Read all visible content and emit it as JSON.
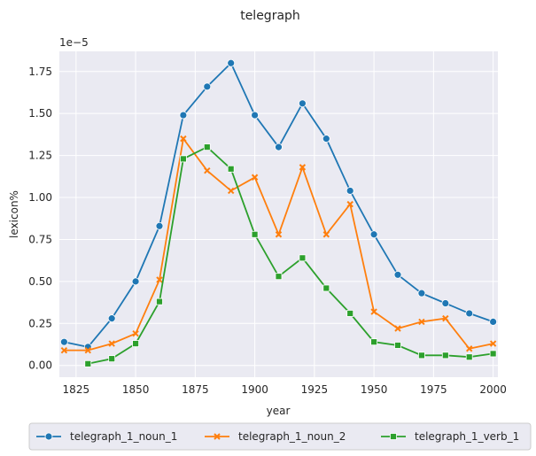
{
  "chart_data": {
    "type": "line",
    "title": "telegraph",
    "xlabel": "year",
    "ylabel": "lexicon%",
    "y_offset_text": "1e−5",
    "xlim": [
      1818,
      2002
    ],
    "ylim": [
      -0.07,
      1.87
    ],
    "x_ticks": [
      1825,
      1850,
      1875,
      1900,
      1925,
      1950,
      1975,
      2000
    ],
    "y_ticks": [
      0.0,
      0.25,
      0.5,
      0.75,
      1.0,
      1.25,
      1.5,
      1.75
    ],
    "y_tick_labels": [
      "0.00",
      "0.25",
      "0.50",
      "0.75",
      "1.00",
      "1.25",
      "1.50",
      "1.75"
    ],
    "grid": true,
    "legend_position": "bottom",
    "series": [
      {
        "name": "telegraph_1_noun_1",
        "color": "#1f77b4",
        "marker": "circle",
        "x": [
          1820,
          1830,
          1840,
          1850,
          1860,
          1870,
          1880,
          1890,
          1900,
          1910,
          1920,
          1930,
          1940,
          1950,
          1960,
          1970,
          1980,
          1990,
          2000
        ],
        "y": [
          0.14,
          0.11,
          0.28,
          0.5,
          0.83,
          1.49,
          1.66,
          1.8,
          1.49,
          1.3,
          1.56,
          1.35,
          1.04,
          0.78,
          0.54,
          0.43,
          0.37,
          0.31,
          0.26
        ]
      },
      {
        "name": "telegraph_1_noun_2",
        "color": "#ff7f0e",
        "marker": "x",
        "x": [
          1820,
          1830,
          1840,
          1850,
          1860,
          1870,
          1880,
          1890,
          1900,
          1910,
          1920,
          1930,
          1940,
          1950,
          1960,
          1970,
          1980,
          1990,
          2000
        ],
        "y": [
          0.09,
          0.09,
          0.13,
          0.19,
          0.51,
          1.35,
          1.16,
          1.04,
          1.12,
          0.78,
          1.18,
          0.78,
          0.96,
          0.32,
          0.22,
          0.26,
          0.28,
          0.1,
          0.13
        ]
      },
      {
        "name": "telegraph_1_verb_1",
        "color": "#2ca02c",
        "marker": "square",
        "x": [
          1830,
          1840,
          1850,
          1860,
          1870,
          1880,
          1890,
          1900,
          1910,
          1920,
          1930,
          1940,
          1950,
          1960,
          1970,
          1980,
          1990,
          2000
        ],
        "y": [
          0.01,
          0.04,
          0.13,
          0.38,
          1.23,
          1.3,
          1.17,
          0.78,
          0.53,
          0.64,
          0.46,
          0.31,
          0.14,
          0.12,
          0.06,
          0.06,
          0.05,
          0.07
        ]
      }
    ]
  }
}
